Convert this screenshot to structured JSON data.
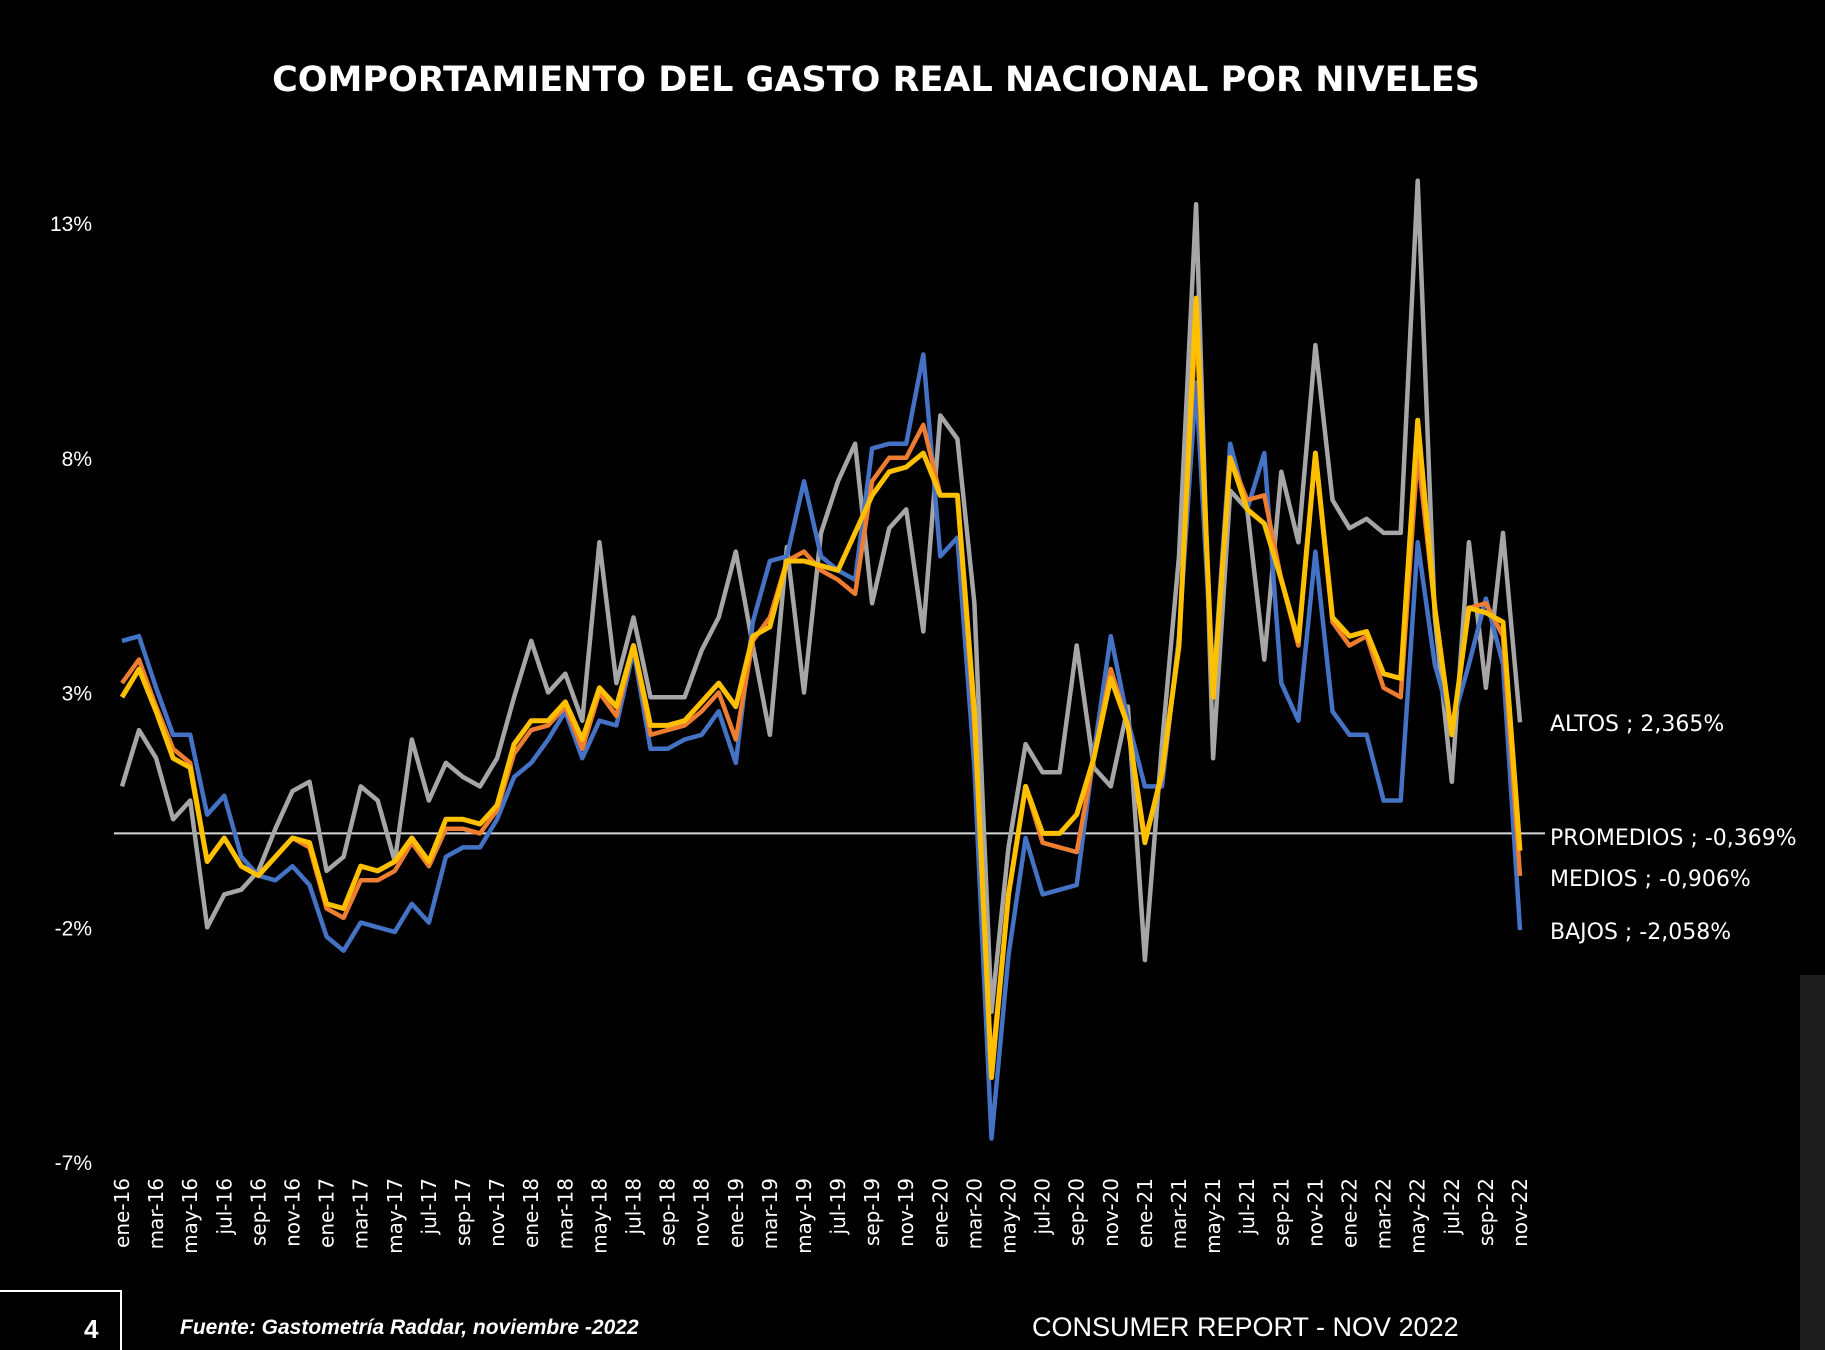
{
  "chart_data": {
    "type": "line",
    "title": "COMPORTAMIENTO DEL GASTO REAL NACIONAL POR NIVELES",
    "xlabel": "",
    "ylabel": "",
    "ylim": [
      -7,
      13
    ],
    "yticks": [
      "13%",
      "8%",
      "3%",
      "-2%",
      "-7%"
    ],
    "ytick_values": [
      13,
      8,
      3,
      -2,
      -7
    ],
    "grid": false,
    "zero_line": true,
    "x": [
      "ene-16",
      "feb-16",
      "mar-16",
      "abr-16",
      "may-16",
      "jun-16",
      "jul-16",
      "ago-16",
      "sep-16",
      "oct-16",
      "nov-16",
      "dic-16",
      "ene-17",
      "feb-17",
      "mar-17",
      "abr-17",
      "may-17",
      "jun-17",
      "jul-17",
      "ago-17",
      "sep-17",
      "oct-17",
      "nov-17",
      "dic-17",
      "ene-18",
      "feb-18",
      "mar-18",
      "abr-18",
      "may-18",
      "jun-18",
      "jul-18",
      "ago-18",
      "sep-18",
      "oct-18",
      "nov-18",
      "dic-18",
      "ene-19",
      "feb-19",
      "mar-19",
      "abr-19",
      "may-19",
      "jun-19",
      "jul-19",
      "ago-19",
      "sep-19",
      "oct-19",
      "nov-19",
      "dic-19",
      "ene-20",
      "feb-20",
      "mar-20",
      "abr-20",
      "may-20",
      "jun-20",
      "jul-20",
      "ago-20",
      "sep-20",
      "oct-20",
      "nov-20",
      "dic-20",
      "ene-21",
      "feb-21",
      "mar-21",
      "abr-21",
      "may-21",
      "jun-21",
      "jul-21",
      "ago-21",
      "sep-21",
      "oct-21",
      "nov-21",
      "dic-21",
      "ene-22",
      "feb-22",
      "mar-22",
      "abr-22",
      "may-22",
      "jun-22",
      "jul-22",
      "ago-22",
      "sep-22",
      "oct-22",
      "nov-22"
    ],
    "xtick_labels": [
      "ene-16",
      "mar-16",
      "may-16",
      "jul-16",
      "sep-16",
      "nov-16",
      "ene-17",
      "mar-17",
      "may-17",
      "jul-17",
      "sep-17",
      "nov-17",
      "ene-18",
      "mar-18",
      "may-18",
      "jul-18",
      "sep-18",
      "nov-18",
      "ene-19",
      "mar-19",
      "may-19",
      "jul-19",
      "sep-19",
      "nov-19",
      "ene-20",
      "mar-20",
      "may-20",
      "jul-20",
      "sep-20",
      "nov-20",
      "ene-21",
      "mar-21",
      "may-21",
      "jul-21",
      "sep-21",
      "nov-21",
      "ene-22",
      "mar-22",
      "may-22",
      "jul-22",
      "sep-22",
      "nov-22"
    ],
    "series": [
      {
        "name": "ALTOS",
        "color": "#a6a6a6",
        "end_label": "ALTOS ; 2,365%",
        "values": [
          1.0,
          2.2,
          1.6,
          0.3,
          0.7,
          -2.0,
          -1.3,
          -1.2,
          -0.8,
          0.1,
          0.9,
          1.1,
          -0.8,
          -0.5,
          1.0,
          0.7,
          -0.6,
          2.0,
          0.7,
          1.5,
          1.2,
          1.0,
          1.6,
          2.9,
          4.1,
          3.0,
          3.4,
          2.4,
          6.2,
          3.2,
          4.6,
          2.9,
          2.9,
          2.9,
          3.9,
          4.6,
          6.0,
          4.0,
          2.1,
          6.1,
          3.0,
          6.4,
          7.5,
          8.3,
          4.9,
          6.5,
          6.9,
          4.3,
          8.9,
          8.4,
          4.9,
          -3.8,
          -0.3,
          1.9,
          1.3,
          1.3,
          4.0,
          1.4,
          1.0,
          2.7,
          -2.7,
          1.9,
          5.9,
          13.4,
          1.6,
          7.3,
          6.9,
          3.7,
          7.7,
          6.2,
          10.4,
          7.1,
          6.5,
          6.7,
          6.4,
          6.4,
          13.9,
          4.6,
          1.1,
          6.2,
          3.1,
          6.4,
          2.365
        ]
      },
      {
        "name": "BAJOS",
        "color": "#4472c4",
        "end_label": "BAJOS ; -2,058%",
        "values": [
          4.1,
          4.2,
          3.1,
          2.1,
          2.1,
          0.4,
          0.8,
          -0.5,
          -0.9,
          -1.0,
          -0.7,
          -1.1,
          -2.2,
          -2.5,
          -1.9,
          -2.0,
          -2.1,
          -1.5,
          -1.9,
          -0.5,
          -0.3,
          -0.3,
          0.3,
          1.2,
          1.5,
          2.0,
          2.6,
          1.6,
          2.4,
          2.3,
          3.9,
          1.8,
          1.8,
          2.0,
          2.1,
          2.6,
          1.5,
          4.5,
          5.8,
          5.9,
          7.5,
          5.9,
          5.6,
          5.4,
          8.2,
          8.3,
          8.3,
          10.2,
          5.9,
          6.3,
          1.4,
          -6.5,
          -2.6,
          -0.1,
          -1.3,
          -1.2,
          -1.1,
          1.7,
          4.2,
          2.4,
          1.0,
          1.0,
          4.2,
          9.6,
          3.1,
          8.3,
          6.9,
          8.1,
          3.2,
          2.4,
          6.0,
          2.6,
          2.1,
          2.1,
          0.7,
          0.7,
          6.2,
          3.6,
          2.3,
          3.6,
          5.0,
          3.6,
          -2.058
        ]
      },
      {
        "name": "MEDIOS",
        "color": "#ed7d31",
        "end_label": "MEDIOS ; -0,906%",
        "values": [
          3.2,
          3.7,
          2.7,
          1.8,
          1.5,
          -0.6,
          -0.1,
          -0.7,
          -0.9,
          -0.5,
          -0.1,
          -0.3,
          -1.6,
          -1.8,
          -1.0,
          -1.0,
          -0.8,
          -0.2,
          -0.7,
          0.1,
          0.1,
          0.0,
          0.5,
          1.7,
          2.2,
          2.3,
          2.7,
          1.8,
          3.0,
          2.5,
          4.0,
          2.1,
          2.2,
          2.3,
          2.6,
          3.0,
          2.0,
          4.1,
          4.6,
          5.8,
          6.0,
          5.6,
          5.4,
          5.1,
          7.5,
          8.0,
          8.0,
          8.7,
          7.2,
          7.2,
          2.3,
          -5.0,
          -1.3,
          1.0,
          -0.2,
          -0.3,
          -0.4,
          1.6,
          3.5,
          2.3,
          -0.1,
          1.2,
          4.0,
          11.0,
          2.9,
          8.0,
          7.1,
          7.2,
          5.4,
          4.0,
          8.1,
          4.5,
          4.0,
          4.2,
          3.1,
          2.9,
          8.1,
          4.8,
          2.1,
          4.8,
          4.9,
          4.2,
          -0.906
        ]
      },
      {
        "name": "PROMEDIOS",
        "color": "#ffc000",
        "end_label": "PROMEDIOS ; -0,369%",
        "values": [
          2.9,
          3.5,
          2.6,
          1.6,
          1.4,
          -0.6,
          -0.1,
          -0.7,
          -0.9,
          -0.5,
          -0.1,
          -0.2,
          -1.5,
          -1.6,
          -0.7,
          -0.8,
          -0.6,
          -0.1,
          -0.6,
          0.3,
          0.3,
          0.2,
          0.6,
          1.9,
          2.4,
          2.4,
          2.8,
          2.0,
          3.1,
          2.7,
          4.0,
          2.3,
          2.3,
          2.4,
          2.8,
          3.2,
          2.7,
          4.2,
          4.4,
          5.8,
          5.8,
          5.7,
          5.6,
          6.4,
          7.2,
          7.7,
          7.8,
          8.1,
          7.2,
          7.2,
          2.6,
          -5.2,
          -1.3,
          1.0,
          0.0,
          0.0,
          0.4,
          1.6,
          3.3,
          2.3,
          -0.2,
          1.3,
          4.0,
          11.4,
          2.9,
          8.0,
          6.9,
          6.6,
          5.4,
          4.1,
          8.1,
          4.6,
          4.2,
          4.3,
          3.4,
          3.3,
          8.8,
          4.8,
          2.1,
          4.8,
          4.7,
          4.5,
          -0.369
        ]
      }
    ]
  },
  "footer": {
    "page_number": "4",
    "source": "Fuente: Gastometría Raddar, noviembre -2022",
    "report": "CONSUMER REPORT - NOV 2022"
  }
}
